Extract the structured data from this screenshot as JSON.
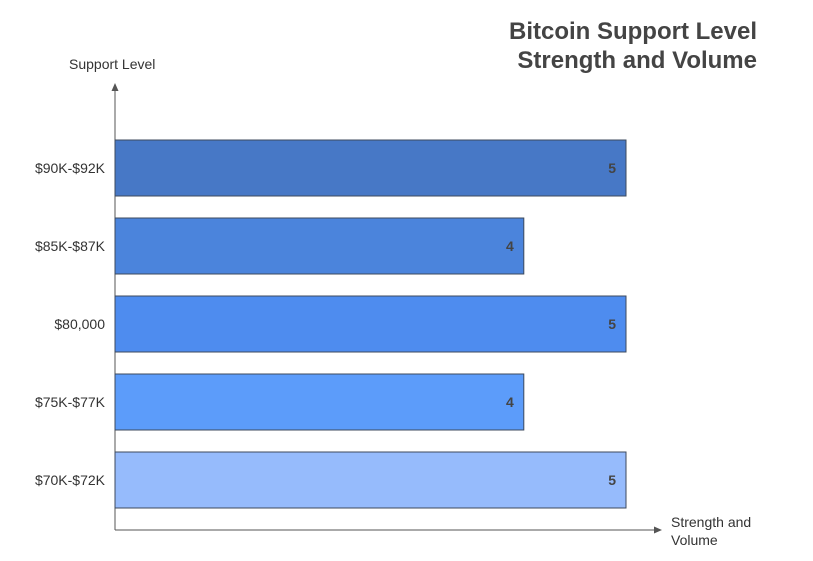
{
  "chart_data": {
    "type": "bar",
    "orientation": "horizontal",
    "title": [
      "Bitcoin Support Level",
      "Strength and Volume"
    ],
    "ylabel": "Support Level",
    "xlabel": [
      "Strength and",
      "Volume"
    ],
    "categories": [
      "$90K-$92K",
      "$85K-$87K",
      "$80,000",
      "$75K-$77K",
      "$70K-$72K"
    ],
    "values": [
      5,
      4,
      5,
      4,
      5
    ],
    "xlim": [
      0,
      5
    ],
    "grid": false,
    "data_labels": true,
    "colors": [
      "#4778C6",
      "#4B84DC",
      "#4E8CEF",
      "#5C9CFA",
      "#96BBFC"
    ]
  }
}
